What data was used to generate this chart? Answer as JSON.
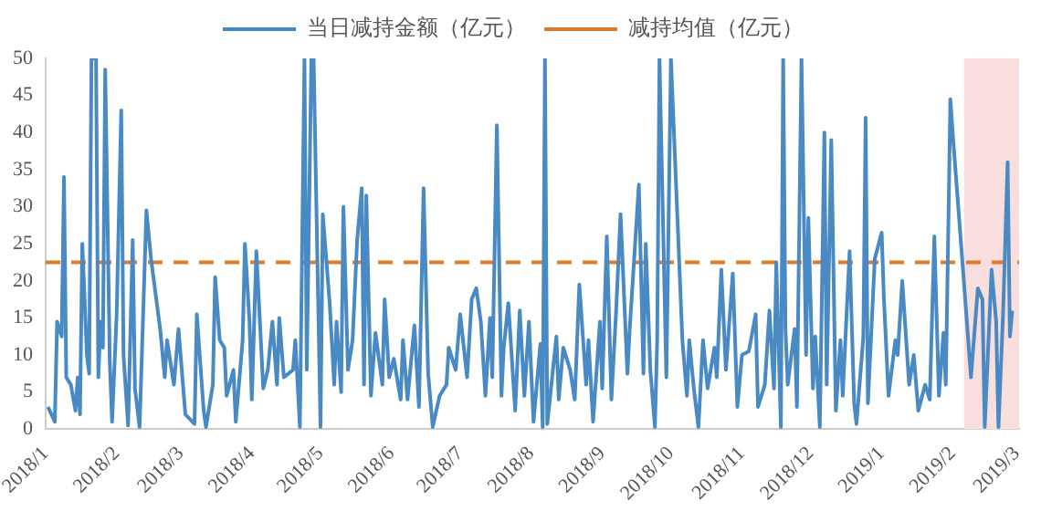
{
  "chart_data": {
    "type": "line",
    "x": [
      "2018-01-02",
      "2018-01-05",
      "2018-01-06",
      "2018-01-08",
      "2018-01-09",
      "2018-01-10",
      "2018-01-12",
      "2018-01-14",
      "2018-01-15",
      "2018-01-16",
      "2018-01-17",
      "2018-01-19",
      "2018-01-20",
      "2018-01-21",
      "2018-01-23",
      "2018-01-24",
      "2018-01-25",
      "2018-01-26",
      "2018-01-27",
      "2018-01-29",
      "2018-01-30",
      "2018-02-01",
      "2018-02-03",
      "2018-02-04",
      "2018-02-06",
      "2018-02-08",
      "2018-02-09",
      "2018-02-11",
      "2018-02-14",
      "2018-02-16",
      "2018-02-20",
      "2018-02-22",
      "2018-02-23",
      "2018-02-26",
      "2018-02-28",
      "2018-03-03",
      "2018-03-07",
      "2018-03-08",
      "2018-03-11",
      "2018-03-12",
      "2018-03-15",
      "2018-03-16",
      "2018-03-18",
      "2018-03-20",
      "2018-03-21",
      "2018-03-24",
      "2018-03-25",
      "2018-03-28",
      "2018-03-29",
      "2018-03-31",
      "2018-04-01",
      "2018-04-03",
      "2018-04-06",
      "2018-04-08",
      "2018-04-10",
      "2018-04-12",
      "2018-04-13",
      "2018-04-15",
      "2018-04-19",
      "2018-04-20",
      "2018-04-22",
      "2018-04-24",
      "2018-04-25",
      "2018-04-27",
      "2018-04-28",
      "2018-05-01",
      "2018-05-02",
      "2018-05-05",
      "2018-05-07",
      "2018-05-08",
      "2018-05-10",
      "2018-05-11",
      "2018-05-13",
      "2018-05-15",
      "2018-05-17",
      "2018-05-19",
      "2018-05-20",
      "2018-05-21",
      "2018-05-23",
      "2018-05-25",
      "2018-05-28",
      "2018-05-29",
      "2018-05-31",
      "2018-06-02",
      "2018-06-05",
      "2018-06-06",
      "2018-06-08",
      "2018-06-11",
      "2018-06-13",
      "2018-06-15",
      "2018-06-17",
      "2018-06-19",
      "2018-06-22",
      "2018-06-25",
      "2018-06-26",
      "2018-06-29",
      "2018-07-01",
      "2018-07-04",
      "2018-07-06",
      "2018-07-08",
      "2018-07-10",
      "2018-07-12",
      "2018-07-14",
      "2018-07-15",
      "2018-07-17",
      "2018-07-19",
      "2018-07-20",
      "2018-07-22",
      "2018-07-25",
      "2018-07-27",
      "2018-07-29",
      "2018-07-31",
      "2018-08-02",
      "2018-08-05",
      "2018-08-06",
      "2018-08-07",
      "2018-08-08",
      "2018-08-12",
      "2018-08-13",
      "2018-08-15",
      "2018-08-18",
      "2018-08-20",
      "2018-08-22",
      "2018-08-25",
      "2018-08-26",
      "2018-08-28",
      "2018-08-31",
      "2018-09-01",
      "2018-09-03",
      "2018-09-05",
      "2018-09-07",
      "2018-09-09",
      "2018-09-12",
      "2018-09-13",
      "2018-09-17",
      "2018-09-19",
      "2018-09-20",
      "2018-09-22",
      "2018-09-24",
      "2018-09-25",
      "2018-09-26",
      "2018-09-29",
      "2018-10-01",
      "2018-10-06",
      "2018-10-08",
      "2018-10-09",
      "2018-10-11",
      "2018-10-13",
      "2018-10-15",
      "2018-10-17",
      "2018-10-20",
      "2018-10-21",
      "2018-10-23",
      "2018-10-25",
      "2018-10-28",
      "2018-10-30",
      "2018-11-01",
      "2018-11-04",
      "2018-11-07",
      "2018-11-08",
      "2018-11-11",
      "2018-11-13",
      "2018-11-15",
      "2018-11-16",
      "2018-11-18",
      "2018-11-19",
      "2018-11-20",
      "2018-11-21",
      "2018-11-24",
      "2018-11-25",
      "2018-11-27",
      "2018-11-29",
      "2018-11-30",
      "2018-12-02",
      "2018-12-03",
      "2018-12-05",
      "2018-12-07",
      "2018-12-08",
      "2018-12-10",
      "2018-12-12",
      "2018-12-14",
      "2018-12-15",
      "2018-12-18",
      "2018-12-20",
      "2018-12-21",
      "2018-12-24",
      "2018-12-25",
      "2018-12-26",
      "2018-12-29",
      "2019-01-01",
      "2019-01-02",
      "2019-01-04",
      "2019-01-07",
      "2019-01-08",
      "2019-01-10",
      "2019-01-13",
      "2019-01-15",
      "2019-01-17",
      "2019-01-20",
      "2019-01-22",
      "2019-01-24",
      "2019-01-26",
      "2019-01-28",
      "2019-01-29",
      "2019-01-31",
      "2019-02-01",
      "2019-02-06",
      "2019-02-09",
      "2019-02-12",
      "2019-02-14",
      "2019-02-15",
      "2019-02-18",
      "2019-02-20",
      "2019-02-21",
      "2019-02-23",
      "2019-02-25",
      "2019-02-26",
      "2019-02-27"
    ],
    "series": [
      {
        "name": "当日减持金额（亿元）",
        "color": "#4a8ac4",
        "values": [
          3,
          1,
          14.5,
          12.5,
          34,
          7,
          6,
          2.5,
          7,
          2,
          25,
          10,
          7.5,
          50,
          50,
          7,
          14.5,
          11,
          48.5,
          9,
          1,
          15.5,
          43,
          10,
          0.5,
          25.5,
          5.5,
          0.3,
          29.5,
          23,
          13.5,
          7,
          12,
          6,
          13.5,
          2,
          0.7,
          15.5,
          2.5,
          0.3,
          6,
          20.5,
          12,
          11,
          4.5,
          8,
          1,
          12,
          25,
          14.5,
          4,
          24,
          5.5,
          8,
          14.5,
          6,
          15,
          7,
          8,
          12,
          0.3,
          50,
          8,
          50,
          50,
          0.3,
          29,
          17,
          6,
          14.5,
          5,
          30,
          8,
          12,
          25.5,
          32.5,
          6,
          31.5,
          4.5,
          13,
          6,
          17.5,
          7,
          9.5,
          4,
          12,
          4,
          14,
          3,
          32.5,
          7.5,
          0.3,
          4.5,
          6,
          11,
          8,
          15.5,
          7,
          17.5,
          19,
          14.5,
          4.5,
          15,
          7,
          41,
          4.5,
          11,
          17,
          2.5,
          16,
          4.5,
          14.5,
          1,
          11.5,
          0.3,
          50,
          0.7,
          12.5,
          4,
          11,
          8,
          4,
          19.5,
          6,
          12,
          1,
          14.5,
          5.5,
          26,
          4,
          15.5,
          29,
          7.5,
          13.5,
          33,
          7.5,
          25,
          8,
          0.3,
          12,
          50,
          7,
          50,
          12,
          4.5,
          12,
          5.5,
          0.3,
          12,
          5.5,
          11,
          7,
          21.5,
          8,
          21,
          3,
          10,
          10.5,
          15.5,
          3,
          6,
          16,
          5.5,
          22.5,
          0.3,
          50,
          13.5,
          6,
          13.5,
          3,
          50,
          10,
          28.5,
          5.5,
          12.5,
          0.3,
          40,
          6,
          39,
          2.5,
          12,
          4.5,
          24,
          3.5,
          0.7,
          12.5,
          42,
          3.5,
          23,
          26.5,
          17.5,
          4.5,
          12,
          10,
          20,
          6,
          10,
          2.5,
          6,
          4,
          26,
          4.5,
          13,
          6,
          44.5,
          40,
          19.5,
          7,
          19,
          17.5,
          0.3,
          21.5,
          14.5,
          0.3,
          15.5,
          36,
          12.5,
          16
        ]
      }
    ],
    "ref_lines": [
      {
        "axis": "y",
        "value": 22.5,
        "label": "减持均值（亿元）",
        "color": "#e07b28",
        "line_style": "dashed"
      }
    ],
    "bands": [
      {
        "axis": "x",
        "from": "2019-02-06",
        "to": "2019-03-02",
        "color": "#f9dede"
      }
    ],
    "xlim": [
      "2018-01-01",
      "2019-03-02"
    ],
    "xticks": [
      {
        "value": "2018-01-01",
        "label": "2018/1"
      },
      {
        "value": "2018-02-01",
        "label": "2018/2"
      },
      {
        "value": "2018-03-01",
        "label": "2018/3"
      },
      {
        "value": "2018-04-01",
        "label": "2018/4"
      },
      {
        "value": "2018-05-01",
        "label": "2018/5"
      },
      {
        "value": "2018-06-01",
        "label": "2018/6"
      },
      {
        "value": "2018-07-01",
        "label": "2018/7"
      },
      {
        "value": "2018-08-01",
        "label": "2018/8"
      },
      {
        "value": "2018-09-01",
        "label": "2018/9"
      },
      {
        "value": "2018-10-01",
        "label": "2018/10"
      },
      {
        "value": "2018-11-01",
        "label": "2018/11"
      },
      {
        "value": "2018-12-01",
        "label": "2018/12"
      },
      {
        "value": "2019-01-01",
        "label": "2019/1"
      },
      {
        "value": "2019-02-01",
        "label": "2019/2"
      },
      {
        "value": "2019-03-01",
        "label": "2019/3"
      }
    ],
    "ylim": [
      0,
      50
    ],
    "yticks": [
      0,
      5,
      10,
      15,
      20,
      25,
      30,
      35,
      40,
      45,
      50
    ],
    "grid": false,
    "legend": "top",
    "marker": "none",
    "line_style": "solid"
  }
}
